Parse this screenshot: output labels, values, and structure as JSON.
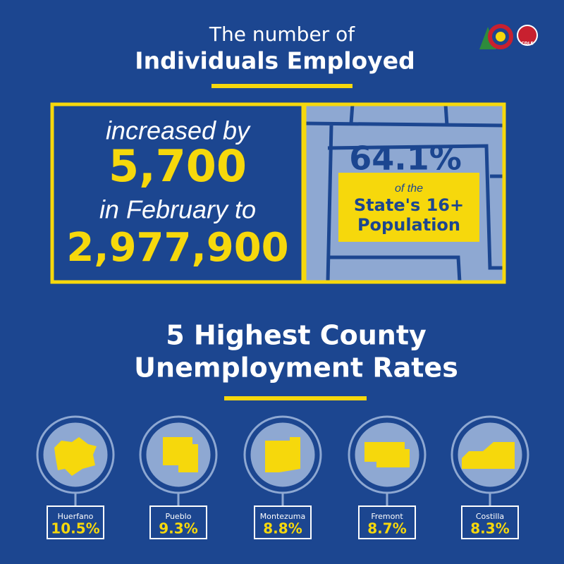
{
  "header": {
    "line1": "The number of",
    "line2": "Individuals Employed",
    "logo_text": "CDLE"
  },
  "employment": {
    "line1": "increased by",
    "change": "5,700",
    "line2": "in February to",
    "total": "2,977,900"
  },
  "population": {
    "share": "64.1%",
    "line1": "of the",
    "line2": "State's 16+",
    "line3": "Population"
  },
  "counties_section": {
    "title_line1": "5 Highest County",
    "title_line2": "Unemployment Rates",
    "counties": [
      {
        "name": "Huerfano",
        "rate": "10.5%"
      },
      {
        "name": "Pueblo",
        "rate": "9.3%"
      },
      {
        "name": "Montezuma",
        "rate": "8.8%"
      },
      {
        "name": "Fremont",
        "rate": "8.7%"
      },
      {
        "name": "Costilla",
        "rate": "8.3%"
      }
    ]
  }
}
